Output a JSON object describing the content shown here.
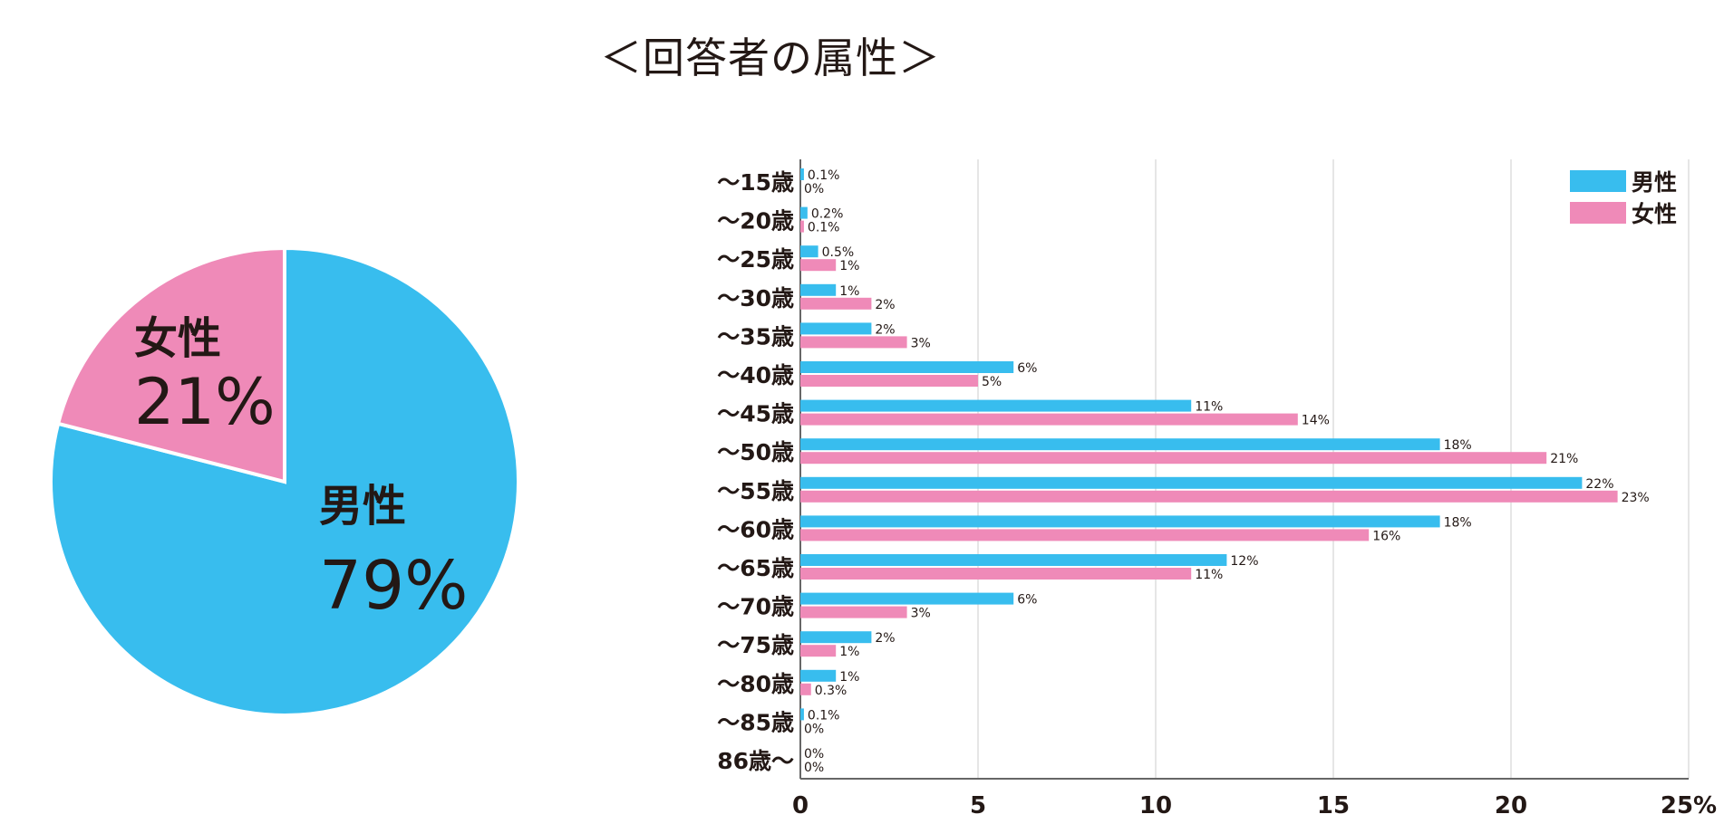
{
  "title": "＜回答者の属性＞",
  "colors": {
    "male": "#38bdee",
    "female": "#ef8ab8",
    "grid": "#dddddd",
    "axis": "#666666"
  },
  "chart_data": [
    {
      "type": "pie",
      "title": "",
      "slices": [
        {
          "label": "男性",
          "value": 79,
          "value_label": "79%",
          "color": "#38bdee"
        },
        {
          "label": "女性",
          "value": 21,
          "value_label": "21%",
          "color": "#ef8ab8"
        }
      ]
    },
    {
      "type": "bar",
      "orientation": "horizontal",
      "title": "",
      "xlabel": "",
      "ylabel": "",
      "xlim": [
        0,
        25
      ],
      "x_ticks": [
        "0",
        "5",
        "10",
        "15",
        "20",
        "25%"
      ],
      "x_tick_values": [
        0,
        5,
        10,
        15,
        20,
        25
      ],
      "grid": true,
      "legend": "top-right",
      "categories": [
        "〜15歳",
        "〜20歳",
        "〜25歳",
        "〜30歳",
        "〜35歳",
        "〜40歳",
        "〜45歳",
        "〜50歳",
        "〜55歳",
        "〜60歳",
        "〜65歳",
        "〜70歳",
        "〜75歳",
        "〜80歳",
        "〜85歳",
        "86歳〜"
      ],
      "series": [
        {
          "name": "男性",
          "color": "#38bdee",
          "values": [
            0.1,
            0.2,
            0.5,
            1,
            2,
            6,
            11,
            18,
            22,
            18,
            12,
            6,
            2,
            1,
            0.1,
            0
          ],
          "labels": [
            "0.1%",
            "0.2%",
            "0.5%",
            "1%",
            "2%",
            "6%",
            "11%",
            "18%",
            "22%",
            "18%",
            "12%",
            "6%",
            "2%",
            "1%",
            "0.1%",
            "0%"
          ]
        },
        {
          "name": "女性",
          "color": "#ef8ab8",
          "values": [
            0,
            0.1,
            1,
            2,
            3,
            5,
            14,
            21,
            23,
            16,
            11,
            3,
            1,
            0.3,
            0,
            0
          ],
          "labels": [
            "0%",
            "0.1%",
            "1%",
            "2%",
            "3%",
            "5%",
            "14%",
            "21%",
            "23%",
            "16%",
            "11%",
            "3%",
            "1%",
            "0.3%",
            "0%",
            "0%"
          ]
        }
      ]
    }
  ]
}
